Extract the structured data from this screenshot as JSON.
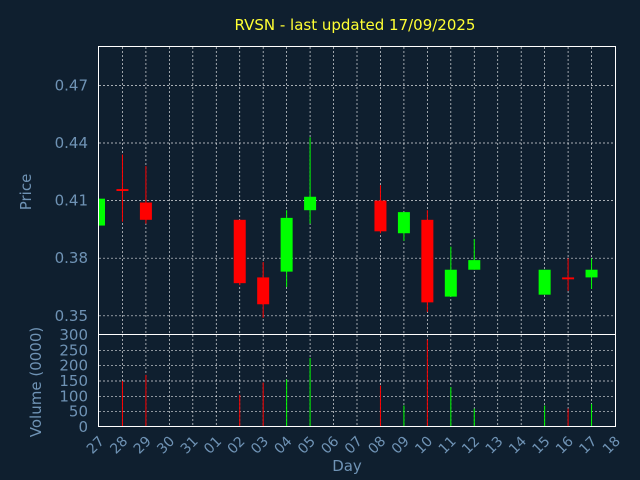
{
  "chart_data": {
    "type": "candlestick",
    "title": "RVSN - last updated 17/09/2025",
    "ylabel_price": "Price",
    "ylabel_volume": "Volume (0000)",
    "xlabel": "Day",
    "price_ticks": [
      "0.35",
      "0.38",
      "0.41",
      "0.44",
      "0.47"
    ],
    "price_tick_values": [
      0.35,
      0.38,
      0.41,
      0.44,
      0.47
    ],
    "price_ylim": [
      0.34,
      0.49
    ],
    "volume_ticks": [
      "0",
      "50",
      "100",
      "150",
      "200",
      "250",
      "300"
    ],
    "volume_tick_values": [
      0,
      50,
      100,
      150,
      200,
      250,
      300
    ],
    "volume_ylim": [
      0,
      300
    ],
    "days": [
      "27",
      "28",
      "29",
      "30",
      "31",
      "01",
      "02",
      "03",
      "04",
      "05",
      "06",
      "07",
      "08",
      "09",
      "10",
      "11",
      "12",
      "13",
      "14",
      "15",
      "16",
      "17",
      "18"
    ],
    "grid": true,
    "up_color": "#00ff00",
    "down_color": "#ff0000",
    "candles": [
      {
        "day": "27",
        "open": 0.397,
        "high": 0.411,
        "low": 0.397,
        "close": 0.411,
        "volume": 0
      },
      {
        "day": "28",
        "open": 0.416,
        "high": 0.434,
        "low": 0.399,
        "close": 0.415,
        "volume": 150
      },
      {
        "day": "29",
        "open": 0.409,
        "high": 0.428,
        "low": 0.398,
        "close": 0.4,
        "volume": 170
      },
      {
        "day": "02",
        "open": 0.4,
        "high": 0.4,
        "low": 0.366,
        "close": 0.367,
        "volume": 105
      },
      {
        "day": "03",
        "open": 0.37,
        "high": 0.378,
        "low": 0.349,
        "close": 0.356,
        "volume": 145
      },
      {
        "day": "04",
        "open": 0.373,
        "high": 0.405,
        "low": 0.365,
        "close": 0.401,
        "volume": 155
      },
      {
        "day": "05",
        "open": 0.405,
        "high": 0.443,
        "low": 0.398,
        "close": 0.412,
        "volume": 225
      },
      {
        "day": "08",
        "open": 0.41,
        "high": 0.418,
        "low": 0.393,
        "close": 0.394,
        "volume": 135
      },
      {
        "day": "09",
        "open": 0.393,
        "high": 0.404,
        "low": 0.389,
        "close": 0.404,
        "volume": 70
      },
      {
        "day": "10",
        "open": 0.4,
        "high": 0.405,
        "low": 0.352,
        "close": 0.357,
        "volume": 285
      },
      {
        "day": "11",
        "open": 0.36,
        "high": 0.386,
        "low": 0.36,
        "close": 0.374,
        "volume": 130
      },
      {
        "day": "12",
        "open": 0.374,
        "high": 0.39,
        "low": 0.374,
        "close": 0.379,
        "volume": 60
      },
      {
        "day": "15",
        "open": 0.361,
        "high": 0.374,
        "low": 0.361,
        "close": 0.374,
        "volume": 70
      },
      {
        "day": "16",
        "open": 0.37,
        "high": 0.38,
        "low": 0.363,
        "close": 0.369,
        "volume": 60
      },
      {
        "day": "17",
        "open": 0.37,
        "high": 0.38,
        "low": 0.364,
        "close": 0.374,
        "volume": 75
      }
    ]
  }
}
